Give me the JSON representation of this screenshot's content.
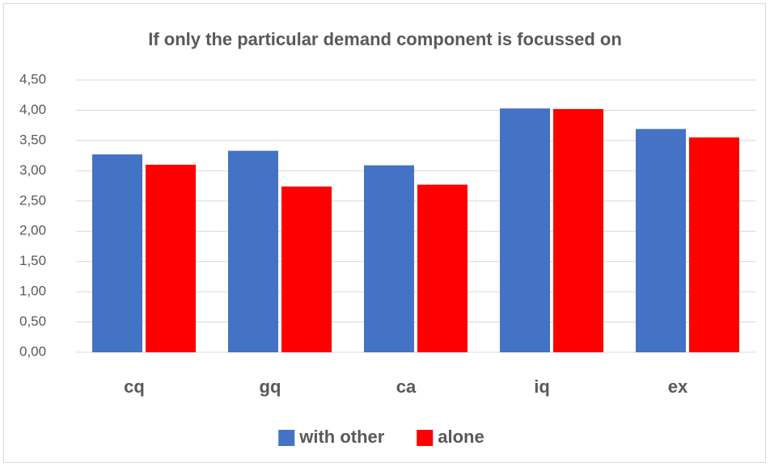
{
  "chart_data": {
    "type": "bar",
    "title": "If only the particular demand component is focussed on",
    "categories": [
      "cq",
      "gq",
      "ca",
      "iq",
      "ex"
    ],
    "series": [
      {
        "name": "with other",
        "color": "#4472c4",
        "values": [
          3.27,
          3.33,
          3.09,
          4.03,
          3.69
        ]
      },
      {
        "name": "alone",
        "color": "#ff0000",
        "values": [
          3.1,
          2.74,
          2.77,
          4.02,
          3.55
        ]
      }
    ],
    "ylim": [
      0,
      4.5
    ],
    "yticks": [
      {
        "value": 0,
        "label": "0,00"
      },
      {
        "value": 0.5,
        "label": "0,50"
      },
      {
        "value": 1,
        "label": "1,00"
      },
      {
        "value": 1.5,
        "label": "1,50"
      },
      {
        "value": 2,
        "label": "2,00"
      },
      {
        "value": 2.5,
        "label": "2,50"
      },
      {
        "value": 3,
        "label": "3,00"
      },
      {
        "value": 3.5,
        "label": "3,50"
      },
      {
        "value": 4,
        "label": "4,00"
      },
      {
        "value": 4.5,
        "label": "4,50"
      }
    ],
    "grid": true,
    "legend": "bottom"
  }
}
